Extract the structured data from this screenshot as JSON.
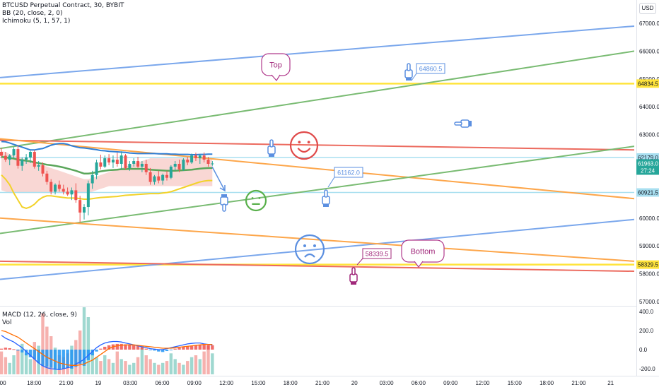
{
  "header": {
    "symbol_line": "BTCUSD Perpetual Contract, 30, BYBIT",
    "bb_label": "BB (20, close, 2, 0)",
    "ichimoku_label": "Ichimoku (5, 1, 57, 1)",
    "currency_button": "USD"
  },
  "macd_panel": {
    "macd_label": "MACD (12, 26, close, 9)",
    "vol_label": "Vol",
    "axis_ticks": [
      "400.0",
      "200.0",
      "0.0",
      "-200.0"
    ]
  },
  "annotations": {
    "top_bubble": "Top",
    "bottom_bubble": "Bottom",
    "price_callout_high": "64860.5",
    "price_callout_mid": "61162.0",
    "price_callout_low": "58339.5"
  },
  "price_badges": {
    "yellow_high": "64834.5",
    "cyan_upper": "62179.0",
    "last_price": "61963.0",
    "countdown": "27:24",
    "cyan_lower": "60921.5",
    "yellow_low": "58329.5"
  },
  "colors": {
    "blue_line": "#7aa7ec",
    "green_line": "#79bb72",
    "red_line": "#ec6a5e",
    "orange_line": "#fda64a",
    "yellow_line": "#ffe43b",
    "cyan_line": "#a8dff0",
    "up_candle": "#26a69a",
    "down_candle": "#ef5350",
    "last_price_bg": "#26a69a"
  },
  "chart_data": [
    {
      "type": "candlestick",
      "title": "BTCUSD Perpetual Contract, 30, BYBIT",
      "ylim": [
        56800,
        67300
      ],
      "y_ticks": [
        57000,
        58000,
        59000,
        60000,
        61000,
        62000,
        63000,
        64000,
        65000,
        66000,
        67000
      ],
      "x_tick_labels": [
        ":00",
        "18:00",
        "21:00",
        "19",
        "03:00",
        "06:00",
        "09:00",
        "12:00",
        "15:00",
        "18:00",
        "21:00",
        "20",
        "03:00",
        "06:00",
        "09:00",
        "12:00",
        "15:00",
        "18:00",
        "21:00",
        "21"
      ],
      "candles": [
        {
          "o": 62380,
          "h": 62520,
          "l": 62150,
          "c": 62240
        },
        {
          "o": 62240,
          "h": 62380,
          "l": 62020,
          "c": 62100
        },
        {
          "o": 62100,
          "h": 62300,
          "l": 61900,
          "c": 62250
        },
        {
          "o": 62250,
          "h": 62550,
          "l": 62150,
          "c": 62480
        },
        {
          "o": 62480,
          "h": 62620,
          "l": 61780,
          "c": 61880
        },
        {
          "o": 61880,
          "h": 62180,
          "l": 61700,
          "c": 62100
        },
        {
          "o": 62100,
          "h": 62300,
          "l": 61950,
          "c": 62180
        },
        {
          "o": 62180,
          "h": 62420,
          "l": 61980,
          "c": 62380
        },
        {
          "o": 62380,
          "h": 62450,
          "l": 61780,
          "c": 61850
        },
        {
          "o": 61850,
          "h": 62050,
          "l": 61700,
          "c": 61900
        },
        {
          "o": 61900,
          "h": 62000,
          "l": 61500,
          "c": 61600
        },
        {
          "o": 61600,
          "h": 61700,
          "l": 61200,
          "c": 61300
        },
        {
          "o": 61300,
          "h": 61400,
          "l": 60850,
          "c": 60950
        },
        {
          "o": 60950,
          "h": 61250,
          "l": 60850,
          "c": 61200
        },
        {
          "o": 61200,
          "h": 61350,
          "l": 60950,
          "c": 61050
        },
        {
          "o": 61050,
          "h": 61200,
          "l": 60850,
          "c": 60950
        },
        {
          "o": 60950,
          "h": 61100,
          "l": 60800,
          "c": 60850
        },
        {
          "o": 60850,
          "h": 61100,
          "l": 60650,
          "c": 61000
        },
        {
          "o": 61000,
          "h": 61250,
          "l": 60550,
          "c": 60650
        },
        {
          "o": 60650,
          "h": 60800,
          "l": 59850,
          "c": 60200
        },
        {
          "o": 60200,
          "h": 60500,
          "l": 59950,
          "c": 60400
        },
        {
          "o": 60400,
          "h": 61350,
          "l": 60100,
          "c": 61250
        },
        {
          "o": 61250,
          "h": 61700,
          "l": 61050,
          "c": 61550
        },
        {
          "o": 61550,
          "h": 62100,
          "l": 61400,
          "c": 62000
        },
        {
          "o": 62000,
          "h": 62280,
          "l": 61750,
          "c": 61850
        },
        {
          "o": 61850,
          "h": 62250,
          "l": 61800,
          "c": 62150
        },
        {
          "o": 62150,
          "h": 62300,
          "l": 61900,
          "c": 62000
        },
        {
          "o": 62000,
          "h": 62250,
          "l": 61800,
          "c": 62100
        },
        {
          "o": 62100,
          "h": 62350,
          "l": 61850,
          "c": 61950
        },
        {
          "o": 61950,
          "h": 62400,
          "l": 61750,
          "c": 62250
        },
        {
          "o": 62250,
          "h": 62300,
          "l": 61750,
          "c": 61800
        },
        {
          "o": 61800,
          "h": 62050,
          "l": 61700,
          "c": 61950
        },
        {
          "o": 61950,
          "h": 62150,
          "l": 61850,
          "c": 62050
        },
        {
          "o": 62050,
          "h": 62200,
          "l": 61800,
          "c": 61850
        },
        {
          "o": 61850,
          "h": 62050,
          "l": 61650,
          "c": 61950
        },
        {
          "o": 61950,
          "h": 62100,
          "l": 61550,
          "c": 61650
        },
        {
          "o": 61650,
          "h": 61800,
          "l": 61200,
          "c": 61300
        },
        {
          "o": 61300,
          "h": 61550,
          "l": 61200,
          "c": 61500
        },
        {
          "o": 61500,
          "h": 61700,
          "l": 61250,
          "c": 61350
        },
        {
          "o": 61350,
          "h": 61600,
          "l": 61200,
          "c": 61550
        },
        {
          "o": 61550,
          "h": 61700,
          "l": 61350,
          "c": 61450
        },
        {
          "o": 61450,
          "h": 61900,
          "l": 61400,
          "c": 61850
        },
        {
          "o": 61850,
          "h": 62050,
          "l": 61700,
          "c": 61950
        },
        {
          "o": 61950,
          "h": 62100,
          "l": 61650,
          "c": 61750
        },
        {
          "o": 61750,
          "h": 62150,
          "l": 61700,
          "c": 62100
        },
        {
          "o": 62100,
          "h": 62200,
          "l": 61900,
          "c": 62000
        },
        {
          "o": 62000,
          "h": 62320,
          "l": 61950,
          "c": 62250
        },
        {
          "o": 62250,
          "h": 62350,
          "l": 62050,
          "c": 62150
        },
        {
          "o": 62150,
          "h": 62300,
          "l": 61950,
          "c": 62250
        },
        {
          "o": 62250,
          "h": 62360,
          "l": 62000,
          "c": 62100
        },
        {
          "o": 62100,
          "h": 62200,
          "l": 61850,
          "c": 61950
        },
        {
          "o": 61950,
          "h": 62050,
          "l": 61880,
          "c": 61963
        }
      ],
      "bb_upper": [
        62750,
        62740,
        62700,
        62650,
        62600,
        62550,
        62500,
        62450,
        62450,
        62480,
        62500,
        62560,
        62620,
        62660,
        62680,
        62680,
        62650,
        62600,
        62560,
        62530,
        62520,
        62500,
        62480,
        62460,
        62430,
        62420,
        62400,
        62390,
        62380,
        62370,
        62360,
        62340,
        62330,
        62320,
        62320,
        62320,
        62320,
        62320,
        62310,
        62310,
        62310,
        62300,
        62300,
        62290,
        62290,
        62290,
        62280,
        62280,
        62290,
        62290,
        62300,
        62300
      ],
      "bb_basis": [
        62200,
        62180,
        62160,
        62140,
        62100,
        62080,
        62060,
        62040,
        62000,
        61980,
        61950,
        61920,
        61900,
        61880,
        61850,
        61820,
        61780,
        61740,
        61700,
        61650,
        61600,
        61600,
        61620,
        61650,
        61680,
        61700,
        61720,
        61730,
        61740,
        61760,
        61760,
        61770,
        61770,
        61770,
        61770,
        61760,
        61740,
        61730,
        61720,
        61710,
        61700,
        61700,
        61700,
        61710,
        61720,
        61730,
        61740,
        61760,
        61780,
        61790,
        61800,
        61800
      ],
      "bb_lower": [
        61550,
        61400,
        61200,
        60900,
        60650,
        60400,
        60350,
        60400,
        60500,
        60650,
        60750,
        60800,
        60800,
        60780,
        60760,
        60740,
        60720,
        60720,
        60720,
        60700,
        60680,
        60680,
        60700,
        60720,
        60740,
        60750,
        60760,
        60770,
        60780,
        60800,
        60820,
        60830,
        60840,
        60850,
        60860,
        60870,
        60880,
        60880,
        60880,
        60900,
        60920,
        60950,
        61000,
        61050,
        61100,
        61150,
        61200,
        61250,
        61300,
        61330,
        61350,
        61350
      ],
      "cloud_upper": [
        62400,
        62380,
        62300,
        62250,
        62200,
        62150,
        62100,
        62050,
        62000,
        61950,
        61900,
        61850,
        61800,
        61750,
        61700,
        61650,
        61600,
        61550,
        61500,
        61450,
        61400,
        61400,
        61450,
        61500,
        61550,
        61600,
        61650,
        61700,
        61750,
        61800,
        61850,
        61900,
        61950,
        62000,
        62050,
        62100,
        62150,
        62150,
        62150,
        62150,
        62150,
        62150,
        62150,
        62150,
        62150,
        62150,
        62150,
        62150,
        62150,
        62150,
        62150,
        62150
      ],
      "cloud_lower": [
        61000,
        60950,
        60900,
        60900,
        60900,
        60900,
        60900,
        60900,
        60900,
        60900,
        60900,
        60900,
        60900,
        60900,
        60900,
        60900,
        60900,
        60900,
        60900,
        60900,
        60900,
        60900,
        60950,
        61000,
        61050,
        61100,
        61150,
        61150,
        61150,
        61150,
        61150,
        61150,
        61150,
        61150,
        61150,
        61150,
        61150,
        61150,
        61150,
        61150,
        61150,
        61150,
        61150,
        61150,
        61150,
        61150,
        61150,
        61150,
        61150,
        61150,
        61150,
        61150
      ],
      "trendlines": [
        {
          "name": "blue-upper",
          "color": "#7aa7ec",
          "from": [
            0,
            65050
          ],
          "to": [
            1,
            66900
          ]
        },
        {
          "name": "green-upper",
          "color": "#79bb72",
          "from": [
            0,
            62500
          ],
          "to": [
            1,
            66000
          ]
        },
        {
          "name": "red-upper",
          "color": "#ec6a5e",
          "from": [
            0,
            62800
          ],
          "to": [
            1,
            62450
          ]
        },
        {
          "name": "orange-upper",
          "color": "#fda64a",
          "from": [
            0,
            62850
          ],
          "to": [
            1,
            60700
          ]
        },
        {
          "name": "green-lower",
          "color": "#79bb72",
          "from": [
            0,
            59450
          ],
          "to": [
            1,
            62580
          ]
        },
        {
          "name": "blue-lower",
          "color": "#7aa7ec",
          "from": [
            0,
            57800
          ],
          "to": [
            1,
            59950
          ]
        },
        {
          "name": "orange-lower",
          "color": "#fda64a",
          "from": [
            0,
            60000
          ],
          "to": [
            1,
            58450
          ]
        },
        {
          "name": "red-lower",
          "color": "#ec6a5e",
          "from": [
            0,
            58450
          ],
          "to": [
            1,
            58090
          ]
        }
      ],
      "horizontal_lines": [
        {
          "name": "yellow-high",
          "color": "#ffe43b",
          "price": 64834.5
        },
        {
          "name": "cyan-upper",
          "color": "#a8dff0",
          "price": 62179.0
        },
        {
          "name": "cyan-lower",
          "color": "#a8dff0",
          "price": 60921.5
        },
        {
          "name": "yellow-low",
          "color": "#ffe43b",
          "price": 58329.5
        }
      ]
    },
    {
      "type": "bar",
      "title": "MACD (12, 26, close, 9)",
      "ylim": [
        -280,
        420
      ],
      "y_ticks": [
        400,
        200,
        0,
        -200
      ],
      "histogram": [
        10,
        20,
        15,
        5,
        -10,
        -30,
        -60,
        -80,
        -100,
        -140,
        -170,
        -180,
        -190,
        -200,
        -210,
        -200,
        -190,
        -200,
        -180,
        -150,
        -170,
        -110,
        -60,
        -20,
        10,
        30,
        45,
        55,
        60,
        60,
        55,
        50,
        45,
        40,
        30,
        10,
        -5,
        -10,
        -20,
        -25,
        -15,
        -5,
        10,
        20,
        30,
        35,
        40,
        45,
        50,
        50,
        48,
        46
      ],
      "macd_line": [
        150,
        120,
        100,
        80,
        50,
        20,
        -20,
        -60,
        -100,
        -140,
        -170,
        -190,
        -200,
        -205,
        -210,
        -200,
        -190,
        -180,
        -150,
        -130,
        -100,
        -60,
        -20,
        20,
        50,
        70,
        80,
        85,
        85,
        80,
        70,
        60,
        50,
        40,
        30,
        20,
        10,
        5,
        0,
        0,
        10,
        20,
        30,
        40,
        50,
        60,
        65,
        70,
        70,
        60,
        55,
        50
      ],
      "signal_line": [
        200,
        190,
        170,
        150,
        130,
        100,
        70,
        40,
        10,
        -20,
        -50,
        -80,
        -100,
        -120,
        -140,
        -150,
        -160,
        -165,
        -165,
        -160,
        -150,
        -130,
        -110,
        -80,
        -50,
        -20,
        10,
        30,
        40,
        45,
        50,
        50,
        50,
        45,
        40,
        35,
        30,
        25,
        20,
        15,
        15,
        15,
        20,
        25,
        30,
        35,
        40,
        45,
        50,
        55,
        55,
        55
      ],
      "volume": [
        120,
        90,
        60,
        100,
        130,
        160,
        110,
        80,
        170,
        150,
        320,
        250,
        200,
        140,
        100,
        90,
        110,
        150,
        180,
        230,
        370,
        300,
        130,
        90,
        70,
        100,
        80,
        60,
        120,
        80,
        70,
        50,
        60,
        90,
        140,
        100,
        80,
        60,
        50,
        60,
        70,
        110,
        80,
        60,
        50,
        70,
        90,
        100,
        80,
        120,
        150,
        110
      ]
    }
  ]
}
